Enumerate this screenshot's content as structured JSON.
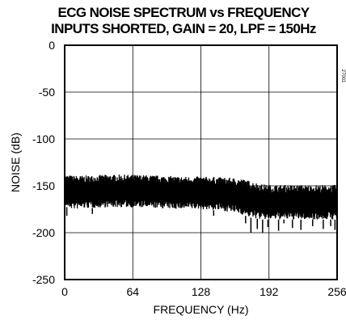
{
  "chart_data": {
    "type": "line",
    "title": "ECG NOISE SPECTRUM vs FREQUENCY",
    "subtitle": "INPUTS SHORTED, GAIN = 20, LPF = 150Hz",
    "xlabel": "FREQUENCY (Hz)",
    "ylabel": "NOISE (dB)",
    "xlim": [
      0,
      256
    ],
    "ylim": [
      -250,
      0
    ],
    "xticks": [
      0,
      64,
      128,
      192,
      256
    ],
    "yticks": [
      0,
      -50,
      -100,
      -150,
      -200,
      -250
    ],
    "grid": true,
    "ref_code": "27001",
    "series": [
      {
        "color": "#000000",
        "envelope": {
          "x": [
            0,
            8,
            20,
            40,
            64,
            90,
            110,
            128,
            150,
            165,
            175,
            185,
            192,
            210,
            230,
            256
          ],
          "upper": [
            -138,
            -139,
            -139,
            -138,
            -138,
            -139,
            -140,
            -140,
            -141,
            -142,
            -145,
            -148,
            -149,
            -149,
            -149,
            -149
          ],
          "lower": [
            -172,
            -175,
            -174,
            -173,
            -173,
            -174,
            -175,
            -175,
            -177,
            -180,
            -184,
            -186,
            -186,
            -186,
            -186,
            -186
          ],
          "center": [
            -155,
            -156,
            -156,
            -155,
            -155,
            -156,
            -157,
            -157,
            -158,
            -160,
            -163,
            -166,
            -167,
            -167,
            -167,
            -167
          ]
        },
        "dips": [
          {
            "x": 2,
            "y": -182
          },
          {
            "x": 26,
            "y": -180
          },
          {
            "x": 140,
            "y": -182
          },
          {
            "x": 170,
            "y": -190
          },
          {
            "x": 175,
            "y": -200
          },
          {
            "x": 181,
            "y": -196
          },
          {
            "x": 186,
            "y": -200
          },
          {
            "x": 191,
            "y": -194
          },
          {
            "x": 201,
            "y": -198
          },
          {
            "x": 206,
            "y": -190
          },
          {
            "x": 214,
            "y": -195
          },
          {
            "x": 222,
            "y": -197
          },
          {
            "x": 233,
            "y": -193
          },
          {
            "x": 243,
            "y": -196
          },
          {
            "x": 250,
            "y": -193
          },
          {
            "x": 254,
            "y": -197
          }
        ]
      }
    ]
  }
}
